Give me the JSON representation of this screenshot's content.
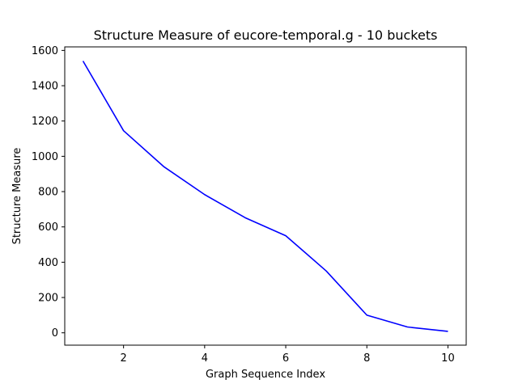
{
  "chart_data": {
    "type": "line",
    "title": "Structure Measure of eucore-temporal.g - 10 buckets",
    "xlabel": "Graph Sequence Index",
    "ylabel": "Structure Measure",
    "xlim": [
      0.55,
      10.45
    ],
    "ylim": [
      -70,
      1620
    ],
    "xticks": [
      2,
      4,
      6,
      8,
      10
    ],
    "yticks": [
      0,
      200,
      400,
      600,
      800,
      1000,
      1200,
      1400,
      1600
    ],
    "grid": false,
    "series": [
      {
        "color": "#0000ff",
        "x": [
          1,
          2,
          3,
          4,
          5,
          6,
          7,
          8,
          9,
          10
        ],
        "y": [
          1540,
          1145,
          940,
          783,
          652,
          550,
          350,
          100,
          33,
          8
        ]
      }
    ]
  }
}
